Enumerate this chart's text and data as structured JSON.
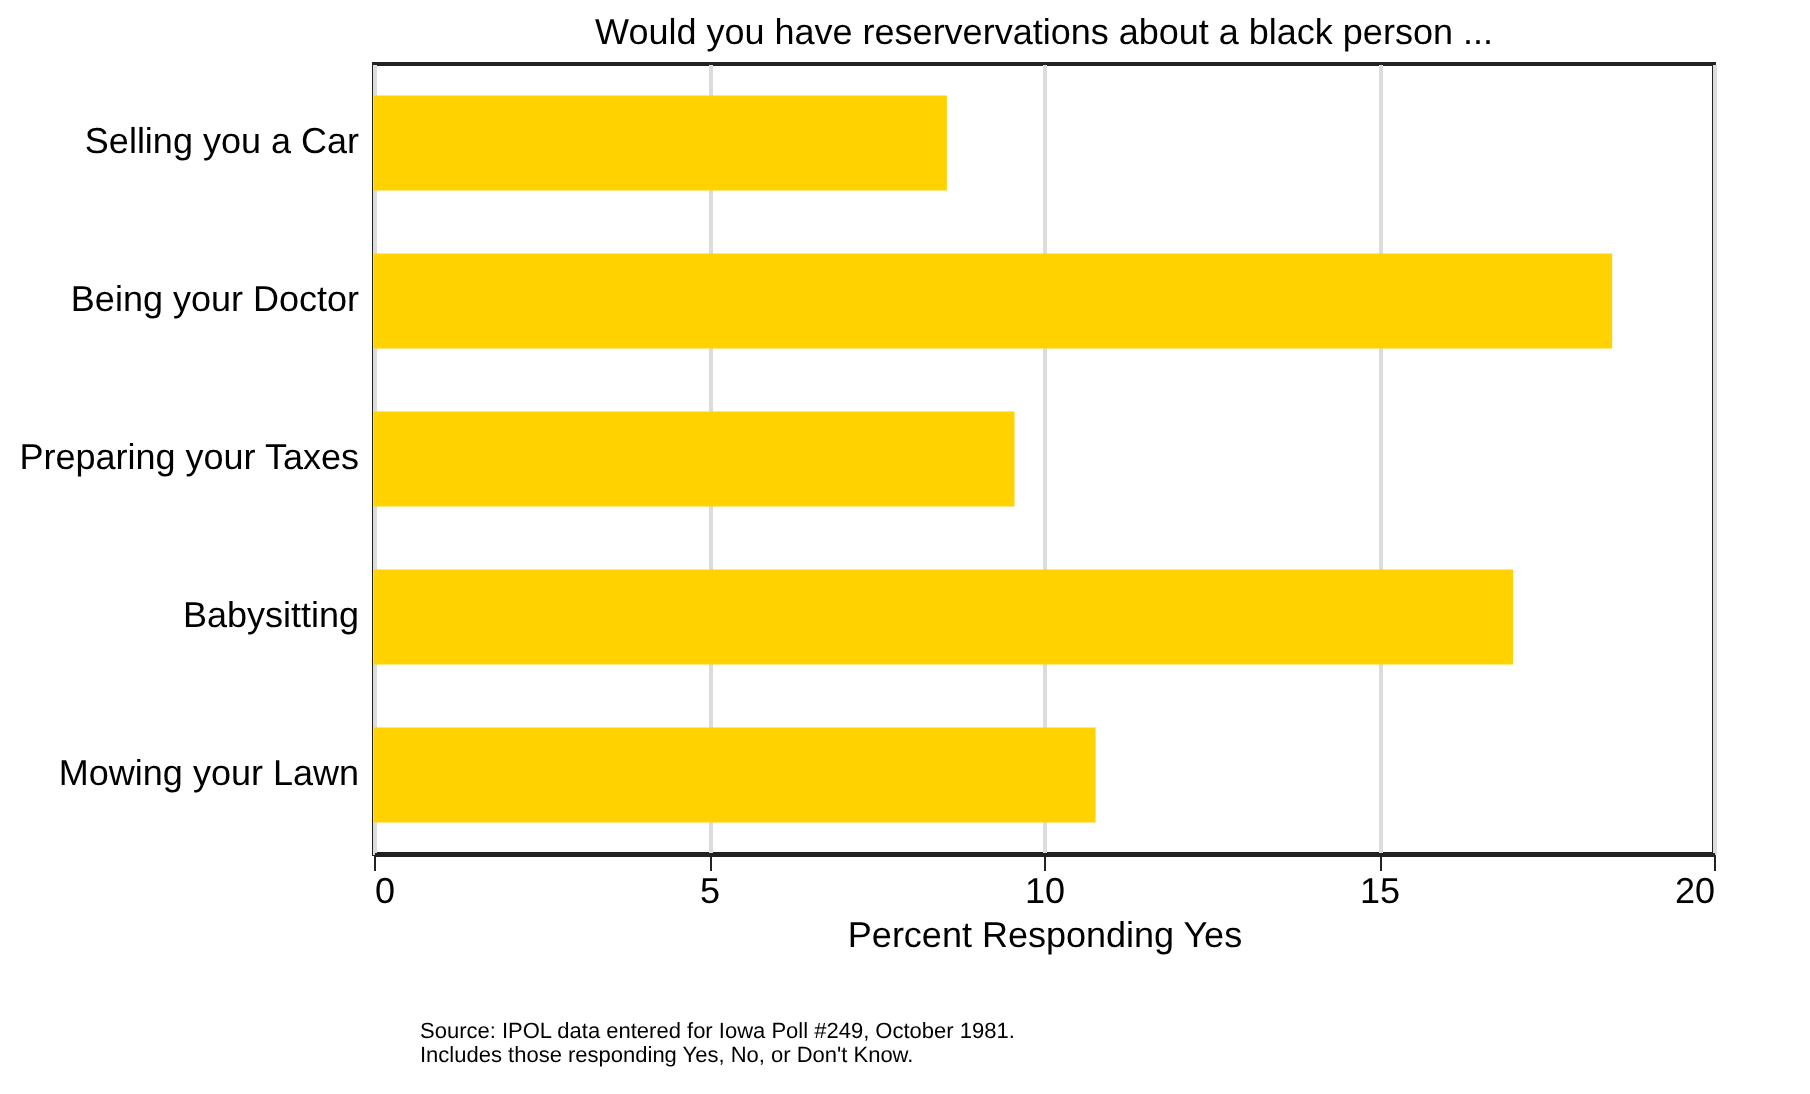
{
  "chart_data": {
    "type": "bar",
    "orientation": "horizontal",
    "title": "Would you have reservervations about a black person ...",
    "xlabel": "Percent Responding Yes",
    "categories": [
      "Selling you a Car",
      "Being your Doctor",
      "Preparing your Taxes",
      "Babysitting",
      "Mowing your Lawn"
    ],
    "values": [
      8.55,
      18.48,
      9.56,
      17.0,
      10.77
    ],
    "color": "#ffd200",
    "xlim": [
      0,
      20
    ],
    "xticks": [
      0,
      5,
      10,
      15,
      20
    ],
    "grid": "x",
    "annotations": [
      "Source: IPOL data entered for Iowa Poll #249, October 1981.",
      "Includes those responding Yes, No, or Don't Know."
    ]
  }
}
